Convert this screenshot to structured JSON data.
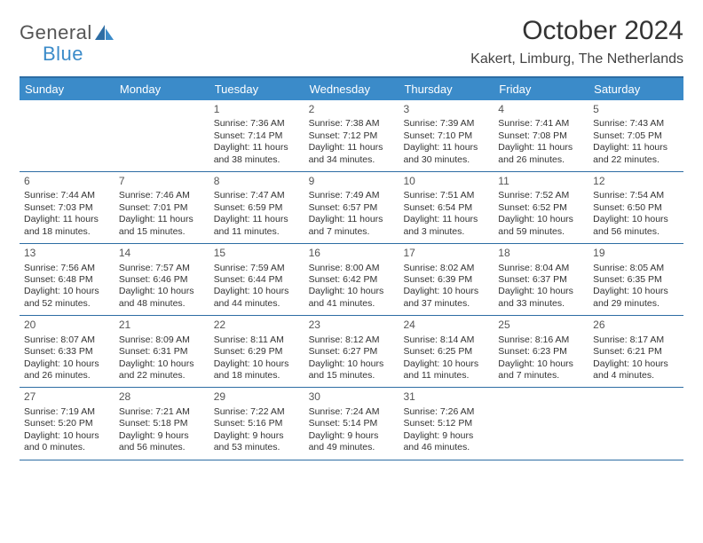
{
  "logo": {
    "part1": "General",
    "part2": "Blue"
  },
  "title": "October 2024",
  "location": "Kakert, Limburg, The Netherlands",
  "colors": {
    "header_bg": "#3b8bc9",
    "header_text": "#ffffff",
    "border": "#2d6da4",
    "text": "#333333",
    "logo_gray": "#555555",
    "logo_blue": "#3b8bc9",
    "background": "#ffffff"
  },
  "dayNames": [
    "Sunday",
    "Monday",
    "Tuesday",
    "Wednesday",
    "Thursday",
    "Friday",
    "Saturday"
  ],
  "startOffset": 2,
  "days": [
    {
      "n": "1",
      "sunrise": "7:36 AM",
      "sunset": "7:14 PM",
      "daylight": "11 hours and 38 minutes."
    },
    {
      "n": "2",
      "sunrise": "7:38 AM",
      "sunset": "7:12 PM",
      "daylight": "11 hours and 34 minutes."
    },
    {
      "n": "3",
      "sunrise": "7:39 AM",
      "sunset": "7:10 PM",
      "daylight": "11 hours and 30 minutes."
    },
    {
      "n": "4",
      "sunrise": "7:41 AM",
      "sunset": "7:08 PM",
      "daylight": "11 hours and 26 minutes."
    },
    {
      "n": "5",
      "sunrise": "7:43 AM",
      "sunset": "7:05 PM",
      "daylight": "11 hours and 22 minutes."
    },
    {
      "n": "6",
      "sunrise": "7:44 AM",
      "sunset": "7:03 PM",
      "daylight": "11 hours and 18 minutes."
    },
    {
      "n": "7",
      "sunrise": "7:46 AM",
      "sunset": "7:01 PM",
      "daylight": "11 hours and 15 minutes."
    },
    {
      "n": "8",
      "sunrise": "7:47 AM",
      "sunset": "6:59 PM",
      "daylight": "11 hours and 11 minutes."
    },
    {
      "n": "9",
      "sunrise": "7:49 AM",
      "sunset": "6:57 PM",
      "daylight": "11 hours and 7 minutes."
    },
    {
      "n": "10",
      "sunrise": "7:51 AM",
      "sunset": "6:54 PM",
      "daylight": "11 hours and 3 minutes."
    },
    {
      "n": "11",
      "sunrise": "7:52 AM",
      "sunset": "6:52 PM",
      "daylight": "10 hours and 59 minutes."
    },
    {
      "n": "12",
      "sunrise": "7:54 AM",
      "sunset": "6:50 PM",
      "daylight": "10 hours and 56 minutes."
    },
    {
      "n": "13",
      "sunrise": "7:56 AM",
      "sunset": "6:48 PM",
      "daylight": "10 hours and 52 minutes."
    },
    {
      "n": "14",
      "sunrise": "7:57 AM",
      "sunset": "6:46 PM",
      "daylight": "10 hours and 48 minutes."
    },
    {
      "n": "15",
      "sunrise": "7:59 AM",
      "sunset": "6:44 PM",
      "daylight": "10 hours and 44 minutes."
    },
    {
      "n": "16",
      "sunrise": "8:00 AM",
      "sunset": "6:42 PM",
      "daylight": "10 hours and 41 minutes."
    },
    {
      "n": "17",
      "sunrise": "8:02 AM",
      "sunset": "6:39 PM",
      "daylight": "10 hours and 37 minutes."
    },
    {
      "n": "18",
      "sunrise": "8:04 AM",
      "sunset": "6:37 PM",
      "daylight": "10 hours and 33 minutes."
    },
    {
      "n": "19",
      "sunrise": "8:05 AM",
      "sunset": "6:35 PM",
      "daylight": "10 hours and 29 minutes."
    },
    {
      "n": "20",
      "sunrise": "8:07 AM",
      "sunset": "6:33 PM",
      "daylight": "10 hours and 26 minutes."
    },
    {
      "n": "21",
      "sunrise": "8:09 AM",
      "sunset": "6:31 PM",
      "daylight": "10 hours and 22 minutes."
    },
    {
      "n": "22",
      "sunrise": "8:11 AM",
      "sunset": "6:29 PM",
      "daylight": "10 hours and 18 minutes."
    },
    {
      "n": "23",
      "sunrise": "8:12 AM",
      "sunset": "6:27 PM",
      "daylight": "10 hours and 15 minutes."
    },
    {
      "n": "24",
      "sunrise": "8:14 AM",
      "sunset": "6:25 PM",
      "daylight": "10 hours and 11 minutes."
    },
    {
      "n": "25",
      "sunrise": "8:16 AM",
      "sunset": "6:23 PM",
      "daylight": "10 hours and 7 minutes."
    },
    {
      "n": "26",
      "sunrise": "8:17 AM",
      "sunset": "6:21 PM",
      "daylight": "10 hours and 4 minutes."
    },
    {
      "n": "27",
      "sunrise": "7:19 AM",
      "sunset": "5:20 PM",
      "daylight": "10 hours and 0 minutes."
    },
    {
      "n": "28",
      "sunrise": "7:21 AM",
      "sunset": "5:18 PM",
      "daylight": "9 hours and 56 minutes."
    },
    {
      "n": "29",
      "sunrise": "7:22 AM",
      "sunset": "5:16 PM",
      "daylight": "9 hours and 53 minutes."
    },
    {
      "n": "30",
      "sunrise": "7:24 AM",
      "sunset": "5:14 PM",
      "daylight": "9 hours and 49 minutes."
    },
    {
      "n": "31",
      "sunrise": "7:26 AM",
      "sunset": "5:12 PM",
      "daylight": "9 hours and 46 minutes."
    }
  ],
  "labels": {
    "sunrise": "Sunrise: ",
    "sunset": "Sunset: ",
    "daylight": "Daylight: "
  }
}
